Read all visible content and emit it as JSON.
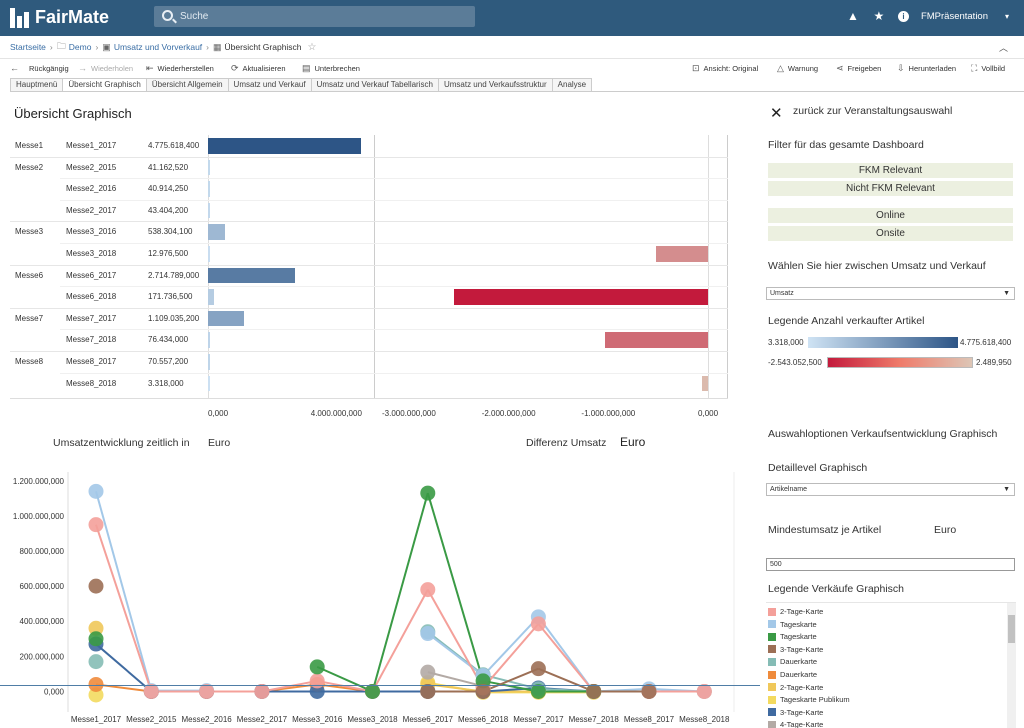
{
  "app": {
    "name": "FairMate"
  },
  "search": {
    "placeholder": "Suche"
  },
  "topbar": {
    "user_label": "FMPräsentation"
  },
  "breadcrumb": {
    "items": [
      "Startseite",
      "Demo",
      "Umsatz und Vorverkauf",
      "Übersicht Graphisch"
    ]
  },
  "toolbar": {
    "undo": "Rückgängig",
    "redo": "Wiederholen",
    "revert": "Wiederherstellen",
    "refresh": "Aktualisieren",
    "pause": "Unterbrechen",
    "view": "Ansicht: Original",
    "alert": "Warnung",
    "share": "Freigeben",
    "download": "Herunterladen",
    "fullscreen": "Vollbild"
  },
  "tabs": [
    "Hauptmenü",
    "Übersicht Graphisch",
    "Übersicht Allgemein",
    "Umsatz und Verkauf",
    "Umsatz und Verkauf Tabellarisch",
    "Umsatz und Verkaufsstruktur",
    "Analyse"
  ],
  "page": {
    "title": "Übersicht Graphisch"
  },
  "top_table": {
    "rows": [
      {
        "group": "Messe1",
        "event": "Messe1_2017",
        "value": "4.775.618,400"
      },
      {
        "group": "Messe2",
        "event": "Messe2_2015",
        "value": "41.162,520"
      },
      {
        "group": "",
        "event": "Messe2_2016",
        "value": "40.914,250"
      },
      {
        "group": "",
        "event": "Messe2_2017",
        "value": "43.404,200"
      },
      {
        "group": "Messe3",
        "event": "Messe3_2016",
        "value": "538.304,100"
      },
      {
        "group": "",
        "event": "Messe3_2018",
        "value": "12.976,500"
      },
      {
        "group": "Messe6",
        "event": "Messe6_2017",
        "value": "2.714.789,000"
      },
      {
        "group": "",
        "event": "Messe6_2018",
        "value": "171.736,500"
      },
      {
        "group": "Messe7",
        "event": "Messe7_2017",
        "value": "1.109.035,200"
      },
      {
        "group": "",
        "event": "Messe7_2018",
        "value": "76.434,000"
      },
      {
        "group": "Messe8",
        "event": "Messe8_2017",
        "value": "70.557,200"
      },
      {
        "group": "",
        "event": "Messe8_2018",
        "value": "3.318,000"
      }
    ],
    "left_axis_ticks": [
      "0,000",
      "4.000.000,000"
    ],
    "right_axis_ticks": [
      "-3.000.000,000",
      "-2.000.000,000",
      "-1.000.000,000",
      "0,000"
    ]
  },
  "sidebar": {
    "back_label": "zurück zur Veranstaltungsauswahl",
    "filter_title": "Filter für das gesamte Dashboard",
    "filters": [
      "FKM Relevant",
      "Nicht FKM Relevant",
      "Online",
      "Onsite"
    ],
    "choice_title": "Wählen Sie hier zwischen Umsatz und Verkauf",
    "choice_value": "Umsatz",
    "legend_title": "Legende Anzahl verkaufter Artikel",
    "grad1_min": "3.318,000",
    "grad1_max": "4.775.618,400",
    "grad2_min": "-2.543.052,500",
    "grad2_max": "2.489,950",
    "options_title": "Auswahloptionen Verkaufsentwicklung Graphisch",
    "detail_title": "Detaillevel Graphisch",
    "detail_value": "Artikelname",
    "min_title": "Mindestumsatz je Artikel",
    "min_currency": "Euro",
    "min_value": "500",
    "sales_legend_title": "Legende Verkäufe Graphisch",
    "legend_items": [
      {
        "label": "2-Tage-Karte",
        "color": "#f4a09a"
      },
      {
        "label": "Tageskarte",
        "color": "#a3c8e8"
      },
      {
        "label": "Tageskarte",
        "color": "#3a9a45"
      },
      {
        "label": "3-Tage-Karte",
        "color": "#9c6f55"
      },
      {
        "label": "Dauerkarte",
        "color": "#85bcb5"
      },
      {
        "label": "Dauerkarte",
        "color": "#ef8b3c"
      },
      {
        "label": "2-Tage-Karte",
        "color": "#f0c85a"
      },
      {
        "label": "Tageskarte Publikum",
        "color": "#f3da5f"
      },
      {
        "label": "3-Tage-Karte",
        "color": "#3f6aa0"
      },
      {
        "label": "4-Tage-Karte",
        "color": "#b3aaa5"
      }
    ]
  },
  "bottom": {
    "title_left": "Umsatzentwicklung zeitlich in",
    "currency_left": "Euro",
    "title_right": "Differenz Umsatz",
    "currency_right": "Euro"
  },
  "chart_data": [
    {
      "type": "bar",
      "categories": [
        "Messe1_2017",
        "Messe2_2015",
        "Messe2_2016",
        "Messe2_2017",
        "Messe3_2016",
        "Messe3_2018",
        "Messe6_2017",
        "Messe6_2018",
        "Messe7_2017",
        "Messe7_2018",
        "Messe8_2017",
        "Messe8_2018"
      ],
      "values": [
        4775618.4,
        41162.52,
        40914.25,
        43404.2,
        538304.1,
        12976.5,
        2714789.0,
        171736.5,
        1109035.2,
        76434.0,
        70557.2,
        3318.0
      ],
      "xlim": [
        0,
        4800000
      ],
      "color_scale": [
        "#cfe3f4",
        "#2d5586"
      ]
    },
    {
      "type": "bar",
      "categories": [
        "Messe3_2018",
        "Messe6_2018",
        "Messe7_2018",
        "Messe8_2018"
      ],
      "values": [
        -520000,
        -2543052.5,
        -1030000,
        -60000
      ],
      "xlim": [
        -3350000,
        200000
      ],
      "color_scale": [
        "#ddc6b6",
        "#c31a3c"
      ]
    },
    {
      "type": "scatter",
      "categories": [
        "Messe1_2017",
        "Messe2_2015",
        "Messe2_2016",
        "Messe2_2017",
        "Messe3_2016",
        "Messe3_2018",
        "Messe6_2017",
        "Messe6_2018",
        "Messe7_2017",
        "Messe7_2018",
        "Messe8_2017",
        "Messe8_2018"
      ],
      "ylabel": "",
      "ylim": [
        -60000,
        1250000
      ],
      "yticks": [
        "0,000",
        "200.000,000",
        "400.000,000",
        "600.000,000",
        "800.000,000",
        "1.000.000,000",
        "1.200.000,000"
      ],
      "series": [
        {
          "color": "#a3c8e8",
          "values": [
            1140000,
            5000,
            5000,
            null,
            null,
            null,
            330000,
            90000,
            425000,
            0,
            15000,
            0
          ]
        },
        {
          "color": "#f4a09a",
          "values": [
            950000,
            0,
            0,
            0,
            60000,
            0,
            580000,
            20000,
            385000,
            0,
            0,
            0
          ]
        },
        {
          "color": "#9c6f55",
          "values": [
            600000,
            null,
            null,
            null,
            null,
            null,
            0,
            0,
            130000,
            0,
            0,
            null
          ]
        },
        {
          "color": "#f0c85a",
          "values": [
            360000,
            null,
            null,
            null,
            null,
            null,
            40000,
            0,
            0,
            0,
            null,
            null
          ]
        },
        {
          "color": "#ef8b3c",
          "values": [
            40000,
            0,
            0,
            0,
            40000,
            0,
            0,
            0,
            0,
            0,
            0,
            0
          ]
        },
        {
          "color": "#3a9a45",
          "values": [
            300000,
            null,
            null,
            null,
            140000,
            0,
            1130000,
            60000,
            0,
            0,
            null,
            null
          ]
        },
        {
          "color": "#3f6aa0",
          "values": [
            270000,
            0,
            0,
            0,
            0,
            0,
            0,
            0,
            20000,
            0,
            0,
            null
          ]
        },
        {
          "color": "#85bcb5",
          "values": [
            170000,
            null,
            null,
            null,
            null,
            null,
            340000,
            95000,
            15000,
            0,
            null,
            null
          ]
        },
        {
          "color": "#b3aaa5",
          "values": [
            null,
            null,
            null,
            null,
            null,
            null,
            110000,
            30000,
            null,
            null,
            null,
            null
          ]
        },
        {
          "color": "#f3da5f",
          "values": [
            -20000,
            null,
            null,
            null,
            null,
            null,
            50000,
            -5000,
            -5000,
            -5000,
            null,
            null
          ]
        }
      ]
    }
  ]
}
